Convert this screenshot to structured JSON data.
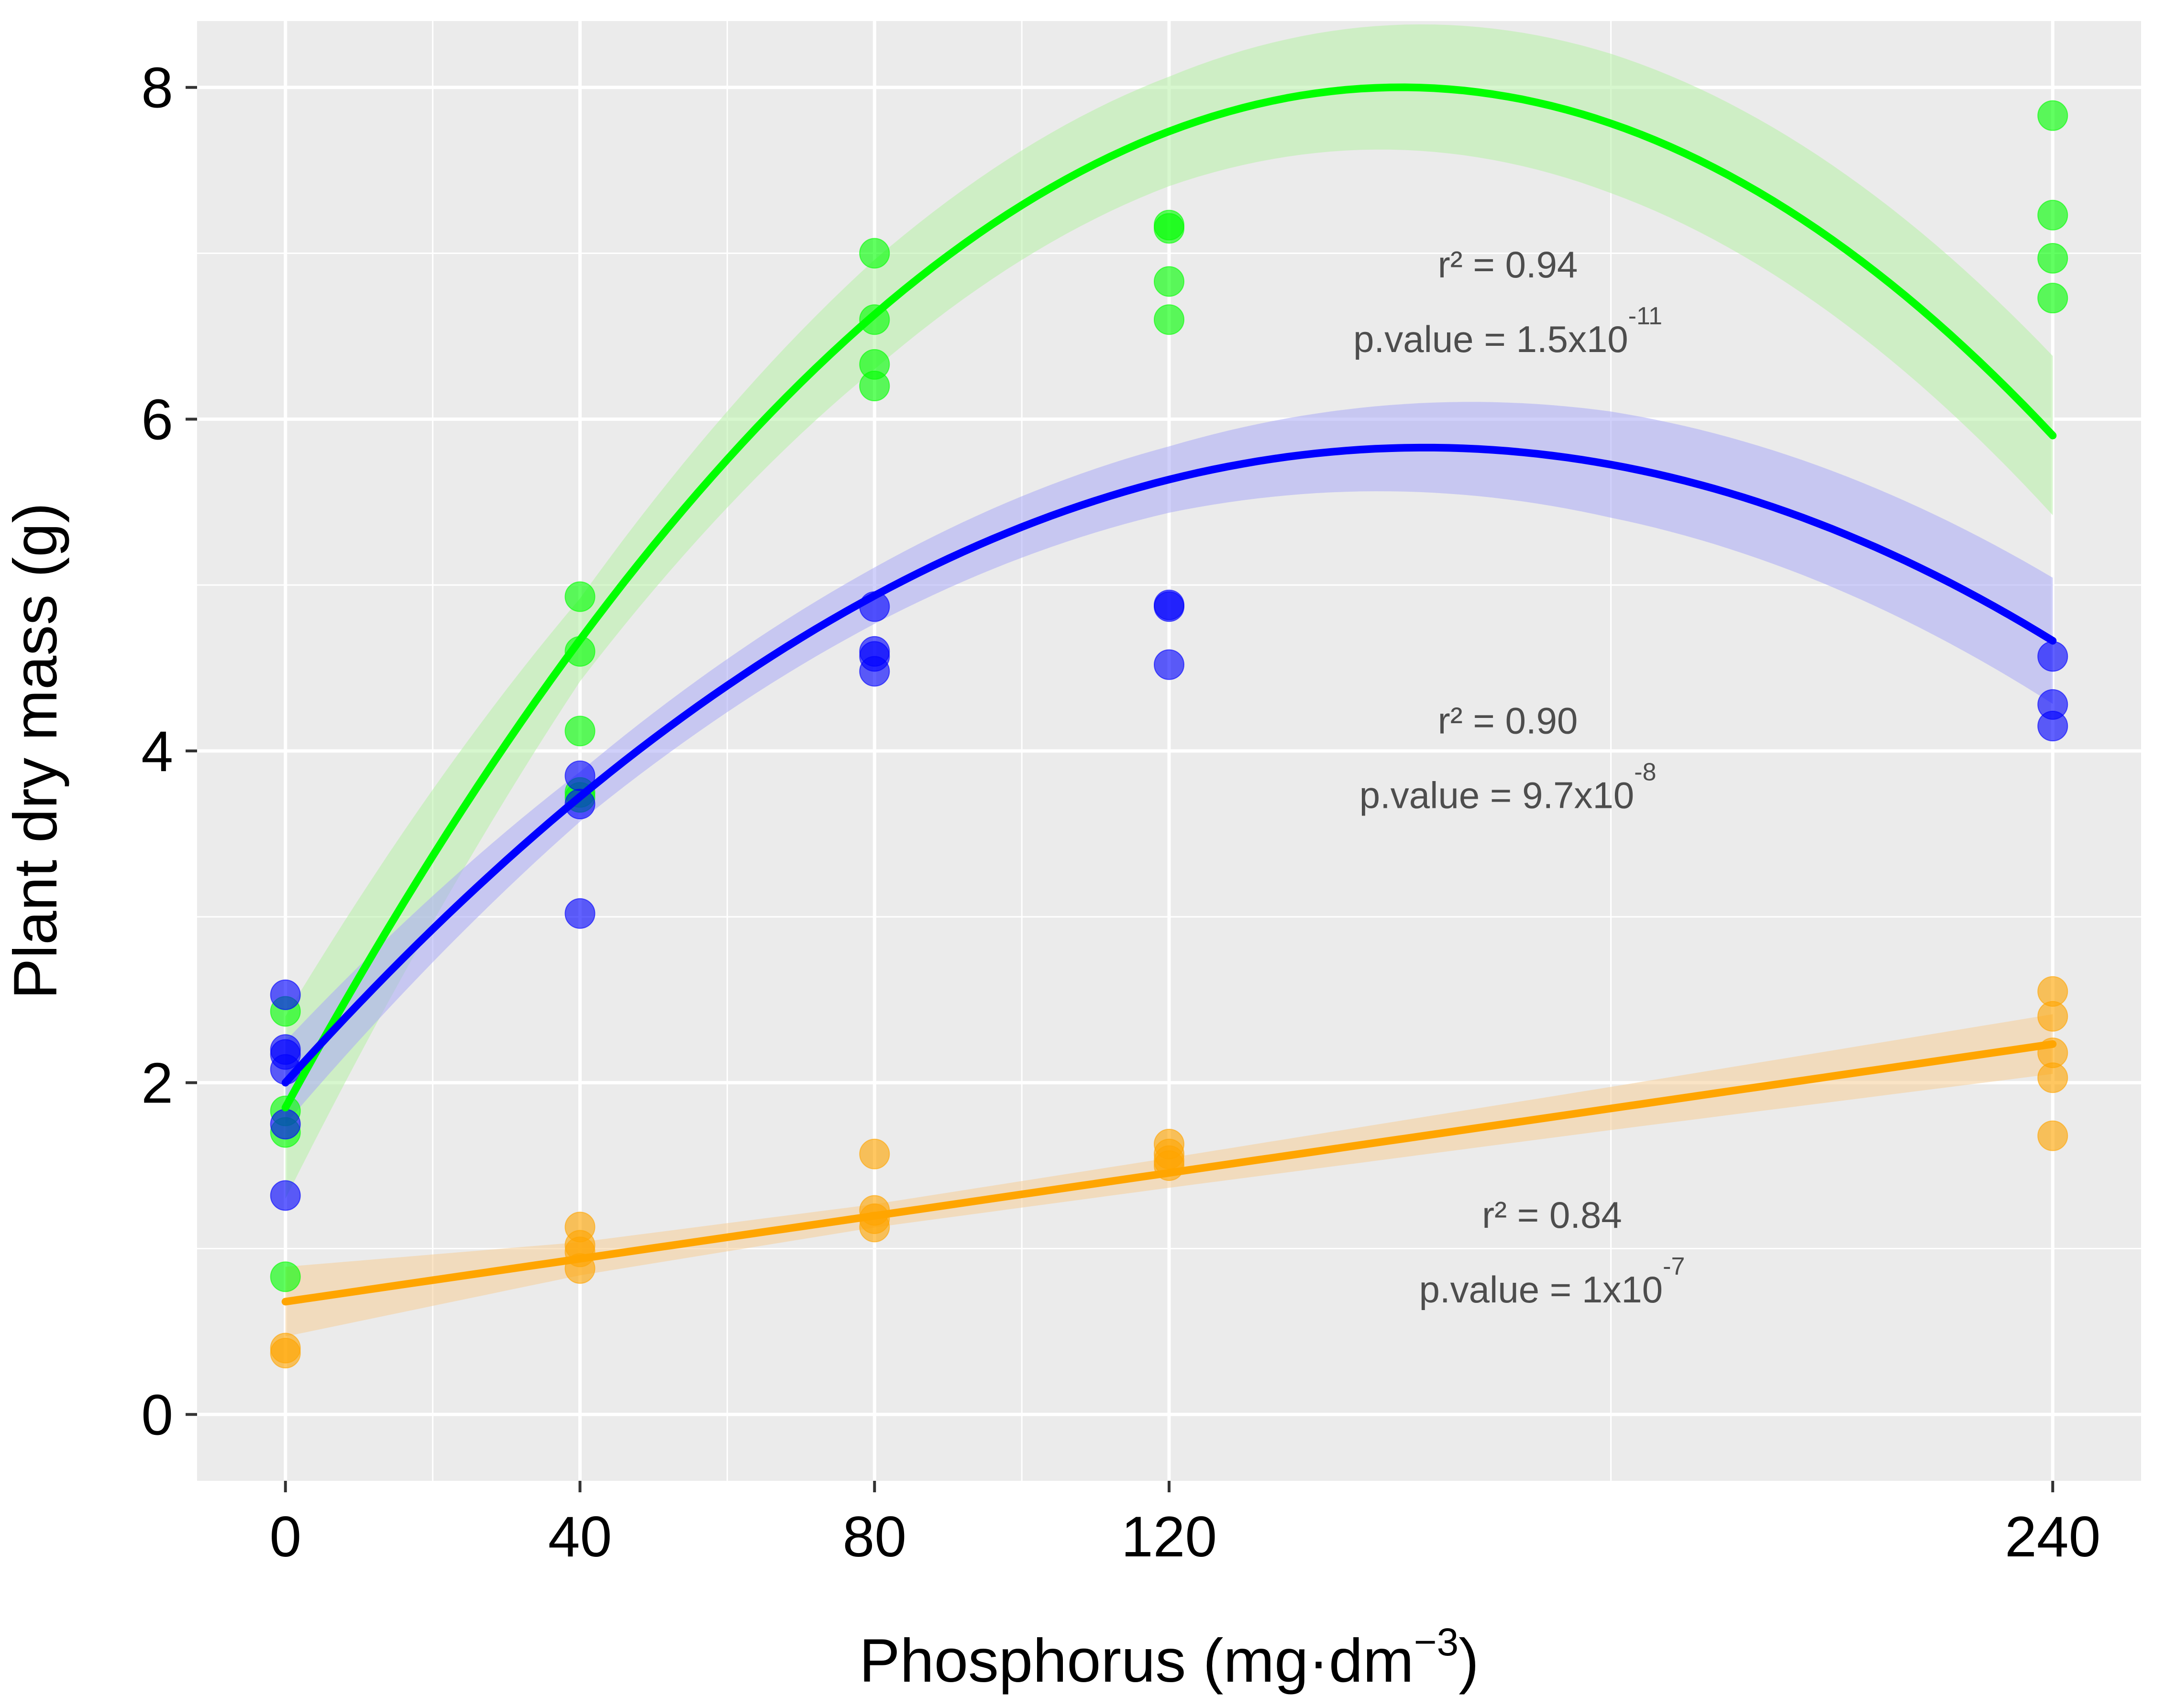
{
  "chart_data": {
    "type": "scatter",
    "xlabel_main": "Phosphorus (mg·dm",
    "xlabel_sup": "−3",
    "xlabel_close": ")",
    "ylabel": "Plant dry mass (g)",
    "xlim": [
      -12,
      252
    ],
    "ylim": [
      -0.4,
      8.4
    ],
    "x_ticks": [
      0,
      40,
      80,
      120,
      240
    ],
    "y_ticks": [
      0,
      2,
      4,
      6,
      8
    ],
    "x_minor_grid": [
      20,
      60,
      100,
      180
    ],
    "y_minor_grid": [
      1,
      3,
      5,
      7
    ],
    "background": "#ebebeb",
    "grid_color": "#ffffff",
    "series": [
      {
        "name": "green",
        "color": "#00ff00",
        "band_color": "#b7f0a6",
        "fit": "quadratic",
        "coefficients": [
          1.85,
          0.0812,
          -0.000268
        ],
        "band_halfwidth": [
          0.55,
          0.25,
          0.33,
          0.33,
          0.42,
          0.48
        ],
        "band_x": [
          0,
          40,
          80,
          120,
          180,
          240
        ],
        "points": [
          [
            0,
            2.43
          ],
          [
            0,
            1.83
          ],
          [
            0,
            1.7
          ],
          [
            0,
            0.83
          ],
          [
            40,
            4.93
          ],
          [
            40,
            4.6
          ],
          [
            40,
            4.12
          ],
          [
            40,
            3.75
          ],
          [
            40,
            3.72
          ],
          [
            80,
            7.0
          ],
          [
            80,
            6.6
          ],
          [
            80,
            6.33
          ],
          [
            80,
            6.2
          ],
          [
            120,
            7.17
          ],
          [
            120,
            7.15
          ],
          [
            120,
            6.83
          ],
          [
            120,
            6.6
          ],
          [
            240,
            7.83
          ],
          [
            240,
            7.23
          ],
          [
            240,
            6.97
          ],
          [
            240,
            6.73
          ]
        ],
        "annotation": {
          "r2": "r² = 0.94",
          "p_main": "p.value = 1.5x10",
          "p_exp": "-11",
          "x": 166,
          "y_r2": 6.93,
          "y_p": 6.48
        }
      },
      {
        "name": "blue",
        "color": "#0000ff",
        "band_color": "#a9a9f5",
        "fit": "quadratic",
        "coefficients": [
          2.0,
          0.0495,
          -0.00016
        ],
        "band_halfwidth": [
          0.25,
          0.15,
          0.17,
          0.2,
          0.32,
          0.38
        ],
        "band_x": [
          0,
          40,
          80,
          120,
          180,
          240
        ],
        "points": [
          [
            0,
            2.53
          ],
          [
            0,
            2.2
          ],
          [
            0,
            2.17
          ],
          [
            0,
            2.08
          ],
          [
            0,
            1.75
          ],
          [
            0,
            1.32
          ],
          [
            40,
            3.85
          ],
          [
            40,
            3.68
          ],
          [
            40,
            3.02
          ],
          [
            80,
            4.87
          ],
          [
            80,
            4.6
          ],
          [
            80,
            4.57
          ],
          [
            80,
            4.48
          ],
          [
            120,
            4.88
          ],
          [
            120,
            4.87
          ],
          [
            120,
            4.52
          ],
          [
            240,
            4.57
          ],
          [
            240,
            4.28
          ],
          [
            240,
            4.15
          ]
        ],
        "annotation": {
          "r2": "r² = 0.90",
          "p_main": "p.value = 9.7x10",
          "p_exp": "-8",
          "x": 166,
          "y_r2": 4.18,
          "y_p": 3.73
        }
      },
      {
        "name": "orange",
        "color": "#ffa500",
        "band_color": "#f6cd97",
        "fit": "linear",
        "coefficients": [
          0.68,
          0.00647
        ],
        "band_halfwidth": [
          0.21,
          0.1,
          0.07,
          0.09,
          0.13,
          0.18
        ],
        "band_x": [
          0,
          40,
          80,
          120,
          180,
          240
        ],
        "points": [
          [
            0,
            0.4
          ],
          [
            0,
            0.37
          ],
          [
            40,
            1.13
          ],
          [
            40,
            1.02
          ],
          [
            40,
            0.98
          ],
          [
            40,
            0.88
          ],
          [
            80,
            1.57
          ],
          [
            80,
            1.23
          ],
          [
            80,
            1.18
          ],
          [
            80,
            1.13
          ],
          [
            120,
            1.63
          ],
          [
            120,
            1.57
          ],
          [
            120,
            1.53
          ],
          [
            120,
            1.5
          ],
          [
            240,
            2.55
          ],
          [
            240,
            2.4
          ],
          [
            240,
            2.18
          ],
          [
            240,
            2.03
          ],
          [
            240,
            1.68
          ]
        ],
        "annotation": {
          "r2": "r² = 0.84",
          "p_main": "p.value = 1x10",
          "p_exp": "-7",
          "x": 172,
          "y_r2": 1.2,
          "y_p": 0.75
        }
      }
    ]
  }
}
